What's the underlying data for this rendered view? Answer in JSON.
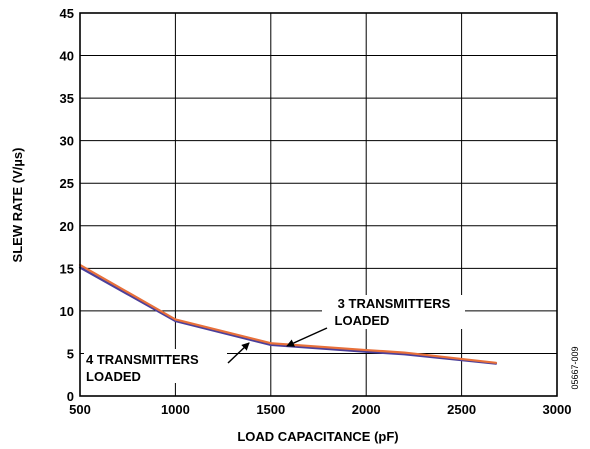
{
  "chart_data": {
    "type": "line",
    "xlabel": "LOAD CAPACITANCE (pF)",
    "ylabel": "SLEW RATE (V/µs)",
    "xlim": [
      500,
      3000
    ],
    "ylim": [
      0,
      45
    ],
    "x_ticks": [
      "500",
      "1000",
      "1500",
      "2000",
      "2500",
      "3000"
    ],
    "y_ticks": [
      "0",
      "5",
      "10",
      "15",
      "20",
      "25",
      "30",
      "35",
      "40",
      "45"
    ],
    "grid": true,
    "series": [
      {
        "name": "3 TRANSMITTERS LOADED",
        "color": "#e8703a",
        "x": [
          500,
          1000,
          1500,
          2000,
          2200,
          2680
        ],
        "y": [
          15.4,
          9.0,
          6.2,
          5.4,
          5.1,
          3.9
        ]
      },
      {
        "name": "4 TRANSMITTERS LOADED",
        "color": "#4b3f9a",
        "x": [
          500,
          1000,
          1500,
          2000,
          2200,
          2680
        ],
        "y": [
          15.1,
          8.8,
          6.0,
          5.2,
          4.9,
          3.8
        ]
      }
    ],
    "annotations": [
      {
        "lines": [
          "3 TRANSMITTERS",
          "LOADED"
        ]
      },
      {
        "lines": [
          "4 TRANSMITTERS",
          "LOADED"
        ]
      }
    ]
  },
  "figure_code": "05667-009"
}
